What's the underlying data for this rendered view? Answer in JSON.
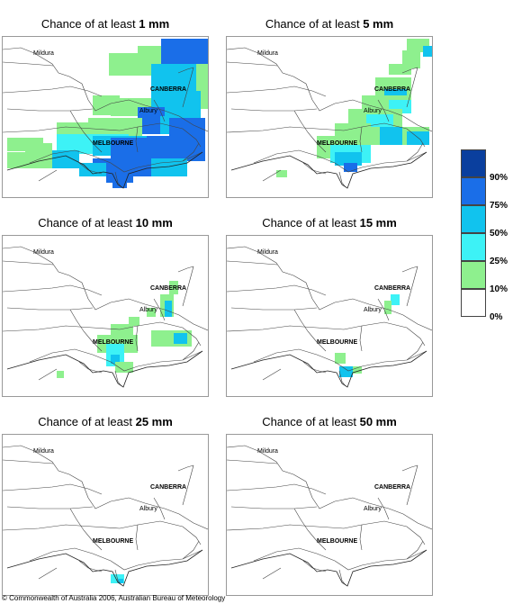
{
  "panels": [
    {
      "id": "p1mm",
      "title_prefix": "Chance of at least ",
      "title_amount": "1 mm"
    },
    {
      "id": "p5mm",
      "title_prefix": "Chance of at least ",
      "title_amount": "5 mm"
    },
    {
      "id": "p10mm",
      "title_prefix": "Chance of at least ",
      "title_amount": "10 mm"
    },
    {
      "id": "p15mm",
      "title_prefix": "Chance of at least ",
      "title_amount": "15 mm"
    },
    {
      "id": "p25mm",
      "title_prefix": "Chance of at least ",
      "title_amount": "25 mm"
    },
    {
      "id": "p50mm",
      "title_prefix": "Chance of at least ",
      "title_amount": "50 mm"
    }
  ],
  "place_labels": {
    "mildura": "Mildura",
    "canberra": "CANBERRA",
    "albury": "Albury",
    "melbourne": "MELBOURNE"
  },
  "legend": {
    "items": [
      {
        "label": "90%",
        "color": "#0a3f9e"
      },
      {
        "label": "75%",
        "color": "#1a6ee8"
      },
      {
        "label": "50%",
        "color": "#11c3ee"
      },
      {
        "label": "25%",
        "color": "#3df2f6"
      },
      {
        "label": "10%",
        "color": "#8ef08e"
      },
      {
        "label": "0%",
        "color": "#ffffff"
      }
    ]
  },
  "colors": {
    "c90": "#0a3f9e",
    "c75": "#1a6ee8",
    "c50": "#11c3ee",
    "c25": "#3df2f6",
    "c10": "#8ef08e",
    "border": "#444444",
    "frame": "#999999"
  },
  "copyright": "© Commonwealth of Australia 2006, Australian Bureau of Meteorology"
}
